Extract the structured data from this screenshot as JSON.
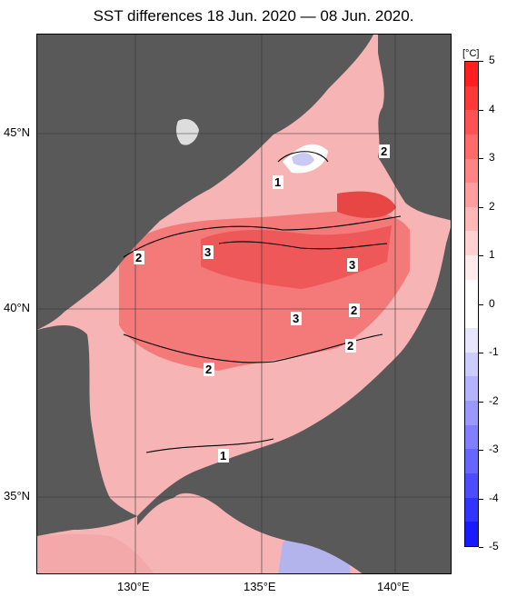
{
  "title": "SST differences 18 Jun. 2020 — 08 Jun. 2020.",
  "map": {
    "lat_labels": [
      "45°N",
      "40°N",
      "35°N"
    ],
    "lon_labels": [
      "130°E",
      "135°E",
      "140°E"
    ],
    "contour_labels": [
      "1",
      "2",
      "3",
      "3",
      "3",
      "2",
      "2",
      "2",
      "1",
      "2"
    ],
    "colors": {
      "land": "#595959",
      "sea_base": "#f6b9b9"
    }
  },
  "colorbar": {
    "unit": "[°C]",
    "ticks": [
      "5",
      "4",
      "3",
      "2",
      "1",
      "0",
      "-1",
      "-2",
      "-3",
      "-4",
      "-5"
    ],
    "colors": [
      "#ff1f1f",
      "#ff3838",
      "#ff5252",
      "#ff6b6b",
      "#ff8585",
      "#ff9e9e",
      "#ffb8b8",
      "#ffd1d1",
      "#ffebeb",
      "#ffffff",
      "#ffffff",
      "#e6e6ff",
      "#ccccff",
      "#b3b3ff",
      "#9999ff",
      "#8080ff",
      "#6666ff",
      "#4d4dff",
      "#3333ff",
      "#1a1aff"
    ]
  }
}
